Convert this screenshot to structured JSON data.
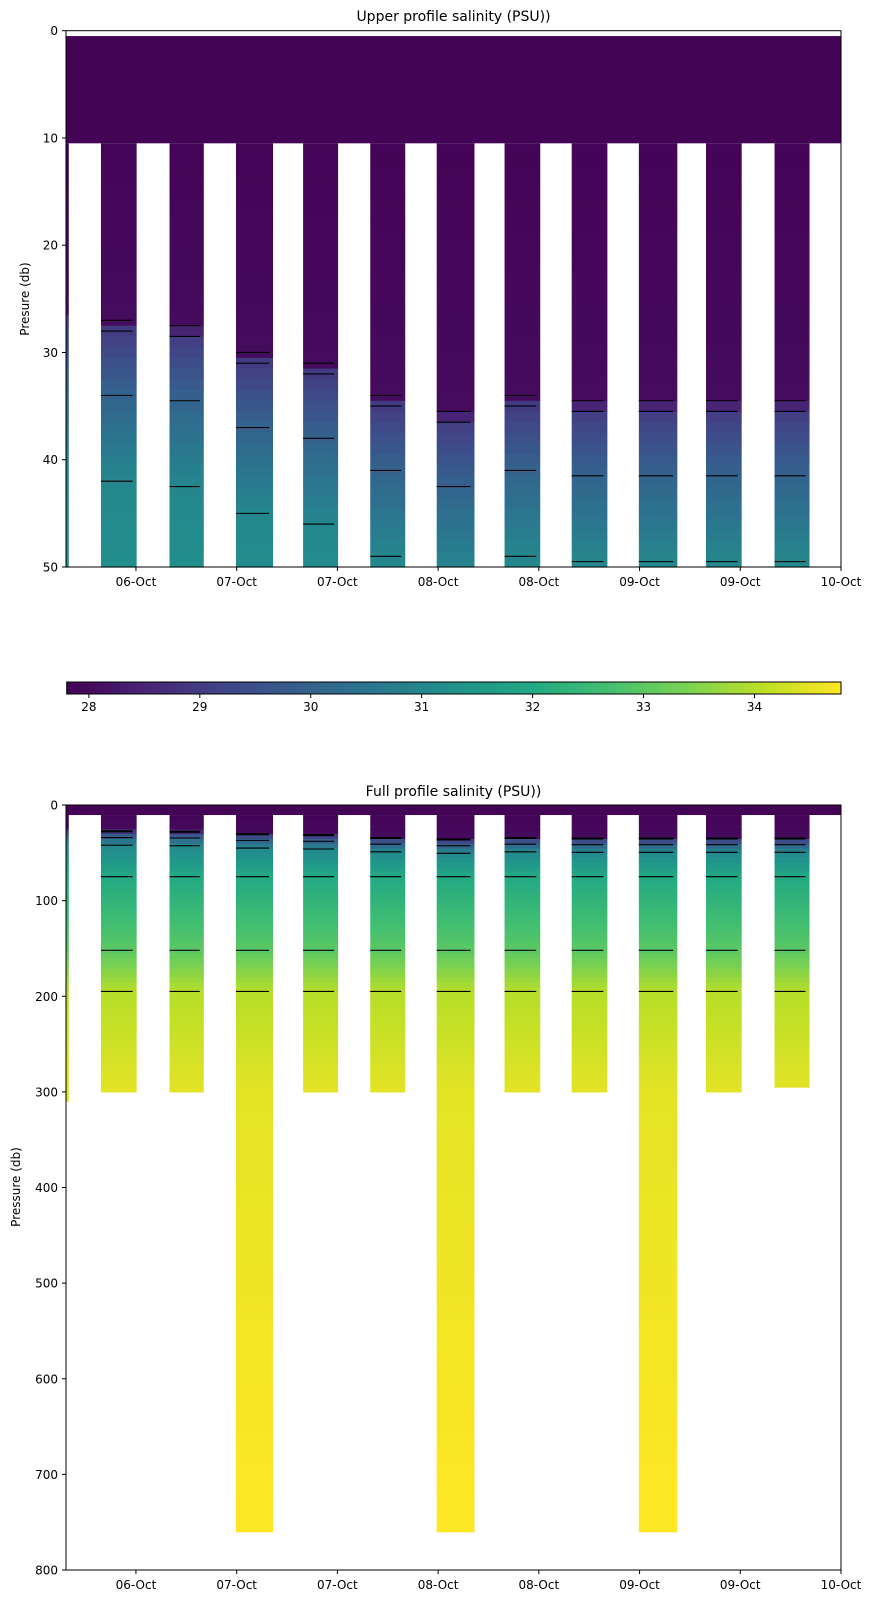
{
  "chart_data": [
    {
      "type": "heatmap",
      "title": "Upper profile salinity (PSU))",
      "ylabel": "Presure (db)",
      "xlabel": "",
      "xlim": [
        "06-Oct 03:40",
        "10-Oct 00:00"
      ],
      "ylim": [
        50,
        0
      ],
      "yticks": [
        0,
        10,
        20,
        30,
        40,
        50
      ],
      "xticks": [
        {
          "time": "06-Oct 12:00",
          "label": "06-Oct"
        },
        {
          "time": "07-Oct 00:00",
          "label": "07-Oct"
        },
        {
          "time": "07-Oct 12:00",
          "label": "07-Oct"
        },
        {
          "time": "08-Oct 00:00",
          "label": "08-Oct"
        },
        {
          "time": "08-Oct 12:00",
          "label": "08-Oct"
        },
        {
          "time": "09-Oct 00:00",
          "label": "09-Oct"
        },
        {
          "time": "09-Oct 12:00",
          "label": "09-Oct"
        },
        {
          "time": "10-Oct 00:00",
          "label": "10-Oct"
        }
      ]
    },
    {
      "type": "heatmap",
      "title": "Full profile salinity (PSU))",
      "ylabel": "Pressure (db)",
      "xlabel": "",
      "xlim": [
        "06-Oct 03:40",
        "10-Oct 00:00"
      ],
      "ylim": [
        800,
        0
      ],
      "yticks": [
        0,
        100,
        200,
        300,
        400,
        500,
        600,
        700,
        800
      ],
      "xticks": [
        {
          "time": "06-Oct 12:00",
          "label": "06-Oct"
        },
        {
          "time": "07-Oct 00:00",
          "label": "07-Oct"
        },
        {
          "time": "07-Oct 12:00",
          "label": "07-Oct"
        },
        {
          "time": "08-Oct 00:00",
          "label": "08-Oct"
        },
        {
          "time": "08-Oct 12:00",
          "label": "08-Oct"
        },
        {
          "time": "09-Oct 00:00",
          "label": "09-Oct"
        },
        {
          "time": "09-Oct 12:00",
          "label": "09-Oct"
        },
        {
          "time": "10-Oct 00:00",
          "label": "10-Oct"
        }
      ]
    }
  ],
  "data": {
    "colormap": "viridis",
    "colorbar": {
      "range": [
        27.8,
        34.78
      ],
      "ticks": [
        28,
        29,
        30,
        31,
        32,
        33,
        34
      ],
      "orientation": "horizontal"
    },
    "contour_levels": [
      28,
      29,
      30,
      31,
      32,
      33,
      34
    ],
    "contour_color": "#000000",
    "surface_layer": {
      "top": 0.5,
      "bottom": 10.5,
      "salinity": 27.85
    },
    "profiles": [
      {
        "start": "06-Oct 03:40",
        "end": "06-Oct 04:00",
        "max_pressure": 310,
        "mixed_layer_depth": 26
      },
      {
        "start": "06-Oct 07:50",
        "end": "06-Oct 12:05",
        "max_pressure": 300,
        "mixed_layer_depth": 27
      },
      {
        "start": "06-Oct 16:00",
        "end": "06-Oct 20:05",
        "max_pressure": 300,
        "mixed_layer_depth": 27.5
      },
      {
        "start": "06-Oct 23:55",
        "end": "07-Oct 04:20",
        "max_pressure": 760,
        "mixed_layer_depth": 30
      },
      {
        "start": "07-Oct 07:55",
        "end": "07-Oct 12:05",
        "max_pressure": 300,
        "mixed_layer_depth": 31
      },
      {
        "start": "07-Oct 15:55",
        "end": "07-Oct 20:05",
        "max_pressure": 300,
        "mixed_layer_depth": 34
      },
      {
        "start": "07-Oct 23:50",
        "end": "08-Oct 04:20",
        "max_pressure": 760,
        "mixed_layer_depth": 35.5
      },
      {
        "start": "08-Oct 07:55",
        "end": "08-Oct 12:10",
        "max_pressure": 300,
        "mixed_layer_depth": 34
      },
      {
        "start": "08-Oct 15:55",
        "end": "08-Oct 20:10",
        "max_pressure": 300,
        "mixed_layer_depth": 34.5
      },
      {
        "start": "08-Oct 23:55",
        "end": "09-Oct 04:30",
        "max_pressure": 760,
        "mixed_layer_depth": 34.5
      },
      {
        "start": "09-Oct 07:55",
        "end": "09-Oct 12:10",
        "max_pressure": 300,
        "mixed_layer_depth": 34.5
      },
      {
        "start": "09-Oct 16:05",
        "end": "09-Oct 20:15",
        "max_pressure": 295,
        "mixed_layer_depth": 34.5
      }
    ],
    "salinity_profile": {
      "pressure_offsets_from_mixed_layer": [
        0,
        1,
        7,
        15
      ],
      "salinity_at_offsets": [
        28.0,
        29.0,
        30.0,
        31.0
      ],
      "deep_pressure": [
        75,
        152,
        195,
        300,
        760
      ],
      "deep_salinity": [
        32.0,
        33.0,
        34.0,
        34.5,
        34.8
      ],
      "surface_salinity": 27.8
    }
  }
}
